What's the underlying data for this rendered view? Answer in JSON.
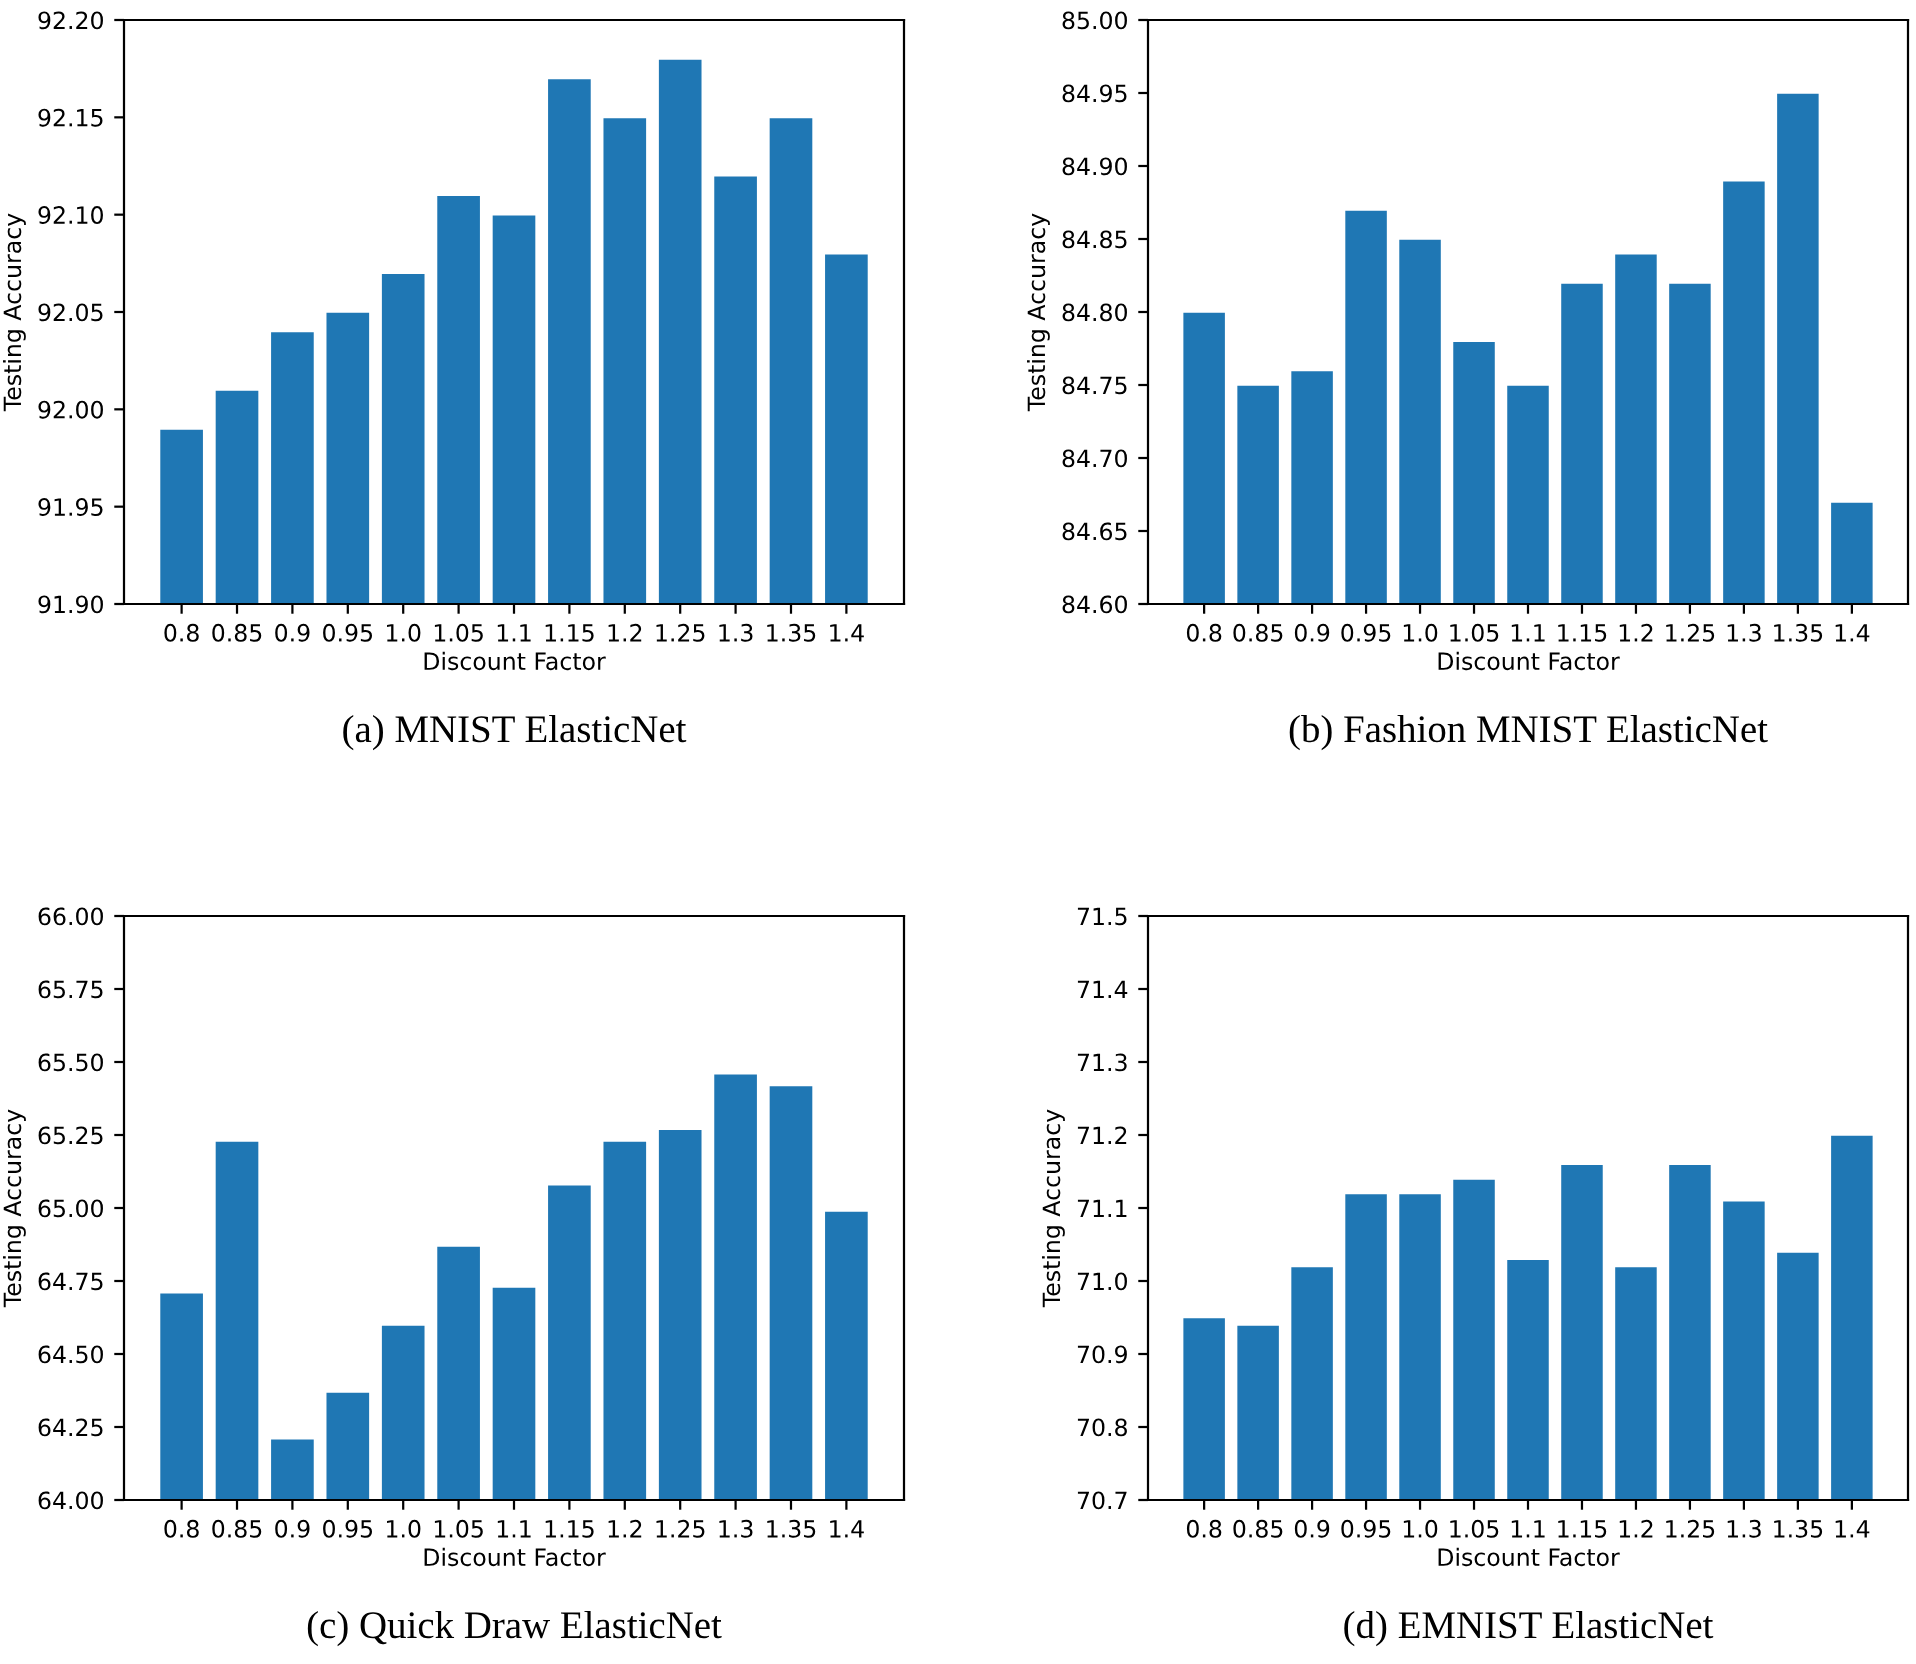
{
  "chart_data": [
    {
      "type": "bar",
      "title": "(a) MNIST ElasticNet",
      "xlabel": "Discount Factor",
      "ylabel": "Testing Accuracy",
      "categories": [
        "0.8",
        "0.85",
        "0.9",
        "0.95",
        "1.0",
        "1.05",
        "1.1",
        "1.15",
        "1.2",
        "1.25",
        "1.3",
        "1.35",
        "1.4"
      ],
      "values": [
        91.99,
        92.01,
        92.04,
        92.05,
        92.07,
        92.11,
        92.1,
        92.17,
        92.15,
        92.18,
        92.12,
        92.15,
        92.08
      ],
      "color": "#1f77b4",
      "ylim": [
        91.9,
        92.2
      ],
      "yticks": [
        {
          "value": 91.9,
          "label": "91.90"
        },
        {
          "value": 91.95,
          "label": "91.95"
        },
        {
          "value": 92.0,
          "label": "92.00"
        },
        {
          "value": 92.05,
          "label": "92.05"
        },
        {
          "value": 92.1,
          "label": "92.10"
        },
        {
          "value": 92.15,
          "label": "92.15"
        },
        {
          "value": 92.2,
          "label": "92.20"
        }
      ]
    },
    {
      "type": "bar",
      "title": "(b) Fashion MNIST ElasticNet",
      "xlabel": "Discount Factor",
      "ylabel": "Testing Accuracy",
      "categories": [
        "0.8",
        "0.85",
        "0.9",
        "0.95",
        "1.0",
        "1.05",
        "1.1",
        "1.15",
        "1.2",
        "1.25",
        "1.3",
        "1.35",
        "1.4"
      ],
      "values": [
        84.8,
        84.75,
        84.76,
        84.87,
        84.85,
        84.78,
        84.75,
        84.82,
        84.84,
        84.82,
        84.89,
        84.95,
        84.67
      ],
      "color": "#1f77b4",
      "ylim": [
        84.6,
        85.0
      ],
      "yticks": [
        {
          "value": 84.6,
          "label": "84.60"
        },
        {
          "value": 84.65,
          "label": "84.65"
        },
        {
          "value": 84.7,
          "label": "84.70"
        },
        {
          "value": 84.75,
          "label": "84.75"
        },
        {
          "value": 84.8,
          "label": "84.80"
        },
        {
          "value": 84.85,
          "label": "84.85"
        },
        {
          "value": 84.9,
          "label": "84.90"
        },
        {
          "value": 84.95,
          "label": "84.95"
        },
        {
          "value": 85.0,
          "label": "85.00"
        }
      ]
    },
    {
      "type": "bar",
      "title": "(c) Quick Draw ElasticNet",
      "xlabel": "Discount Factor",
      "ylabel": "Testing Accuracy",
      "categories": [
        "0.8",
        "0.85",
        "0.9",
        "0.95",
        "1.0",
        "1.05",
        "1.1",
        "1.15",
        "1.2",
        "1.25",
        "1.3",
        "1.35",
        "1.4"
      ],
      "values": [
        64.71,
        65.23,
        64.21,
        64.37,
        64.6,
        64.87,
        64.73,
        65.08,
        65.23,
        65.27,
        65.46,
        65.42,
        64.99
      ],
      "color": "#1f77b4",
      "ylim": [
        64.0,
        66.0
      ],
      "yticks": [
        {
          "value": 64.0,
          "label": "64.00"
        },
        {
          "value": 64.25,
          "label": "64.25"
        },
        {
          "value": 64.5,
          "label": "64.50"
        },
        {
          "value": 64.75,
          "label": "64.75"
        },
        {
          "value": 65.0,
          "label": "65.00"
        },
        {
          "value": 65.25,
          "label": "65.25"
        },
        {
          "value": 65.5,
          "label": "65.50"
        },
        {
          "value": 65.75,
          "label": "65.75"
        },
        {
          "value": 66.0,
          "label": "66.00"
        }
      ]
    },
    {
      "type": "bar",
      "title": "(d) EMNIST ElasticNet",
      "xlabel": "Discount Factor",
      "ylabel": "Testing Accuracy",
      "categories": [
        "0.8",
        "0.85",
        "0.9",
        "0.95",
        "1.0",
        "1.05",
        "1.1",
        "1.15",
        "1.2",
        "1.25",
        "1.3",
        "1.35",
        "1.4"
      ],
      "values": [
        70.95,
        70.94,
        71.02,
        71.12,
        71.12,
        71.14,
        71.03,
        71.16,
        71.02,
        71.16,
        71.11,
        71.04,
        71.2
      ],
      "color": "#1f77b4",
      "ylim": [
        70.7,
        71.5
      ],
      "yticks": [
        {
          "value": 70.7,
          "label": "70.7"
        },
        {
          "value": 70.8,
          "label": "70.8"
        },
        {
          "value": 70.9,
          "label": "70.9"
        },
        {
          "value": 71.0,
          "label": "71.0"
        },
        {
          "value": 71.1,
          "label": "71.1"
        },
        {
          "value": 71.2,
          "label": "71.2"
        },
        {
          "value": 71.3,
          "label": "71.3"
        },
        {
          "value": 71.4,
          "label": "71.4"
        },
        {
          "value": 71.5,
          "label": "71.5"
        }
      ]
    }
  ]
}
